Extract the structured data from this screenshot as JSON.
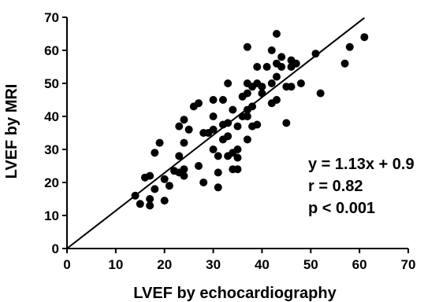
{
  "chart_data": {
    "type": "scatter",
    "xlabel": "LVEF by echocardiography",
    "ylabel": "LVEF by MRI",
    "xlim": [
      0,
      70
    ],
    "ylim": [
      0,
      70
    ],
    "xticks": [
      0,
      10,
      20,
      30,
      40,
      50,
      60,
      70
    ],
    "yticks": [
      0,
      10,
      20,
      30,
      40,
      50,
      60,
      70
    ],
    "grid": false,
    "legend": "none",
    "marker_color": "#000000",
    "points": [
      {
        "x": 14,
        "y": 16
      },
      {
        "x": 15,
        "y": 13.5
      },
      {
        "x": 16,
        "y": 21.5
      },
      {
        "x": 17,
        "y": 22
      },
      {
        "x": 17,
        "y": 15
      },
      {
        "x": 17,
        "y": 13
      },
      {
        "x": 18,
        "y": 18
      },
      {
        "x": 18,
        "y": 29
      },
      {
        "x": 19,
        "y": 32
      },
      {
        "x": 20,
        "y": 21
      },
      {
        "x": 20,
        "y": 14.5
      },
      {
        "x": 21,
        "y": 19
      },
      {
        "x": 22,
        "y": 23.5
      },
      {
        "x": 23,
        "y": 23
      },
      {
        "x": 23,
        "y": 28
      },
      {
        "x": 23,
        "y": 37
      },
      {
        "x": 24,
        "y": 39
      },
      {
        "x": 24,
        "y": 24
      },
      {
        "x": 24,
        "y": 22
      },
      {
        "x": 24,
        "y": 32
      },
      {
        "x": 25,
        "y": 36
      },
      {
        "x": 26,
        "y": 43
      },
      {
        "x": 27,
        "y": 44
      },
      {
        "x": 27,
        "y": 25
      },
      {
        "x": 28,
        "y": 35
      },
      {
        "x": 28,
        "y": 20
      },
      {
        "x": 29,
        "y": 35
      },
      {
        "x": 30,
        "y": 45
      },
      {
        "x": 30,
        "y": 40
      },
      {
        "x": 30,
        "y": 36
      },
      {
        "x": 30,
        "y": 30
      },
      {
        "x": 31,
        "y": 23
      },
      {
        "x": 31,
        "y": 18.5
      },
      {
        "x": 31,
        "y": 28
      },
      {
        "x": 32,
        "y": 45
      },
      {
        "x": 32,
        "y": 37.5
      },
      {
        "x": 32,
        "y": 33
      },
      {
        "x": 33,
        "y": 50
      },
      {
        "x": 33,
        "y": 38
      },
      {
        "x": 33,
        "y": 34
      },
      {
        "x": 33,
        "y": 28
      },
      {
        "x": 34,
        "y": 42
      },
      {
        "x": 34,
        "y": 24
      },
      {
        "x": 34,
        "y": 29
      },
      {
        "x": 35,
        "y": 37
      },
      {
        "x": 35,
        "y": 30
      },
      {
        "x": 35,
        "y": 27.5
      },
      {
        "x": 35,
        "y": 24
      },
      {
        "x": 36,
        "y": 46
      },
      {
        "x": 36,
        "y": 40
      },
      {
        "x": 37,
        "y": 61
      },
      {
        "x": 37,
        "y": 50
      },
      {
        "x": 37,
        "y": 47
      },
      {
        "x": 37,
        "y": 42
      },
      {
        "x": 37,
        "y": 40
      },
      {
        "x": 37,
        "y": 33
      },
      {
        "x": 38,
        "y": 49
      },
      {
        "x": 38,
        "y": 37
      },
      {
        "x": 38,
        "y": 43
      },
      {
        "x": 39,
        "y": 50
      },
      {
        "x": 39,
        "y": 55
      },
      {
        "x": 39,
        "y": 37.5
      },
      {
        "x": 40,
        "y": 49
      },
      {
        "x": 40,
        "y": 47
      },
      {
        "x": 41,
        "y": 55
      },
      {
        "x": 42,
        "y": 60
      },
      {
        "x": 42,
        "y": 50
      },
      {
        "x": 42,
        "y": 44
      },
      {
        "x": 43,
        "y": 65
      },
      {
        "x": 43,
        "y": 56
      },
      {
        "x": 43,
        "y": 52
      },
      {
        "x": 43,
        "y": 45
      },
      {
        "x": 44,
        "y": 58
      },
      {
        "x": 44,
        "y": 55
      },
      {
        "x": 45,
        "y": 49
      },
      {
        "x": 45,
        "y": 38
      },
      {
        "x": 46,
        "y": 57
      },
      {
        "x": 46,
        "y": 55
      },
      {
        "x": 46,
        "y": 49
      },
      {
        "x": 47,
        "y": 56
      },
      {
        "x": 48,
        "y": 50
      },
      {
        "x": 51,
        "y": 59
      },
      {
        "x": 52,
        "y": 47
      },
      {
        "x": 57,
        "y": 56
      },
      {
        "x": 58,
        "y": 61
      },
      {
        "x": 61,
        "y": 64
      }
    ],
    "regression_line": {
      "slope": 1.13,
      "intercept": 0.9,
      "x_start": 0,
      "x_end": 61
    },
    "annotations": [
      "y = 1.13x + 0.9",
      "r = 0.82",
      "p < 0.001"
    ]
  }
}
